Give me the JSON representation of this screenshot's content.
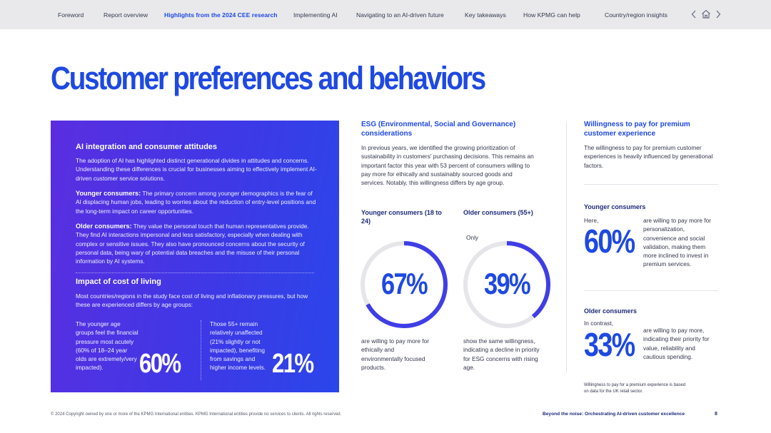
{
  "nav": {
    "items": [
      "Foreword",
      "Report overview",
      "Highlights from the 2024 CEE research",
      "Implementing AI",
      "Navigating to an AI-driven future",
      "Key takeaways",
      "How KPMG can help",
      "Country/region insights"
    ],
    "active_index": 2,
    "icons": [
      "chevron-left-icon",
      "home-icon",
      "chevron-right-icon"
    ]
  },
  "title": "Customer preferences and behaviors",
  "panel": {
    "heading1": "AI integration and consumer attitudes",
    "intro": "The adoption of AI has highlighted distinct generational divides in attitudes and concerns. Understanding these differences is crucial for businesses aiming to effectively implement AI-driven customer service solutions.",
    "younger_label": "Younger consumers:",
    "younger_text": " The primary concern among younger demographics is the fear of AI displacing human jobs, leading to worries about the reduction of entry-level positions and the long-term impact on career opportunities.",
    "older_label": "Older consumers:",
    "older_text": " They value the personal touch that human representatives provide. They find AI interactions impersonal and less satisfactory, especially when dealing with complex or sensitive issues. They also have pronounced concerns about the security of personal data, being wary of potential data breaches and the misuse of their personal information by AI systems.",
    "heading2": "Impact of cost of living",
    "cost_text": "Most countries/regions in the study face cost of living and inflationary pressures, but how these are experienced differs by age groups:",
    "stat1_text": "The younger age groups feel the financial pressure most acutely (60% of 18–24 year olds are extremely/very impacted).",
    "stat1_value": "60%",
    "stat2_text": "Those 55+ remain relatively unaffected (21% slightly or not impacted), benefiting from savings and higher income levels.",
    "stat2_value": "21%"
  },
  "esg": {
    "heading": "ESG (Environmental, Social and Governance) considerations",
    "intro": "In previous years, we identified the growing prioritization of sustainability in customers' purchasing decisions. This remains an important factor this year with 53 percent of consumers willing to pay more for ethically and sustainably sourced goods and services. Notably, this willingness differs by age group.",
    "younger_head": "Younger consumers (18 to 24)",
    "older_head": "Older consumers (55+)",
    "older_prefix": "Only",
    "younger_value": "67%",
    "younger_fraction": 0.67,
    "older_value": "39%",
    "older_fraction": 0.39,
    "younger_caption": "are willing to pay more for ethically and environmentally focused products.",
    "older_caption": "show the same willingness, indicating a decline in priority for ESG concerns with rising age."
  },
  "premium": {
    "heading": "Willingness to pay for premium customer experience",
    "intro": "The willingness to pay for premium customer experiences is heavily influenced by generational factors.",
    "younger_head": "Younger consumers",
    "younger_prefix": "Here,",
    "younger_value": "60%",
    "younger_text": "are willing to pay more for personalization, convenience and social validation, making them more inclined to invest in premium services.",
    "older_head": "Older consumers",
    "older_prefix": "In contrast,",
    "older_value": "33%",
    "older_text": "are willing to pay more, indicating their priority for value, reliability and cautious spending.",
    "footnote": "Willingness to pay for a premium experience is based on data for the UK retail sector."
  },
  "footer": {
    "copyright": "© 2024 Copyright owned by one or more of the KPMG International entities. KPMG International entities provide no services to clients. All rights reserved.",
    "report_title": "Beyond the noise: Orchestrating AI-driven customer excellence",
    "page": "8"
  },
  "colors": {
    "accent": "#1e49e2",
    "donut_track": "#e6e6ea",
    "donut_fill": "#3f3ee6"
  }
}
